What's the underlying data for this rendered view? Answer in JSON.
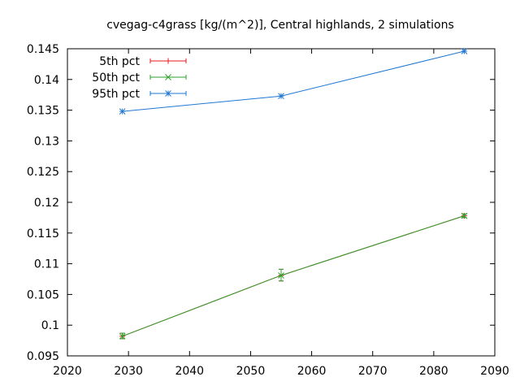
{
  "chart_data": {
    "type": "line",
    "title": "cvegag-c4grass [kg/(m^2)], Central highlands, 2 simulations",
    "xlabel": "",
    "ylabel": "",
    "xlim": [
      2020,
      2090
    ],
    "ylim": [
      0.095,
      0.145
    ],
    "x_ticks": [
      "2020",
      "2030",
      "2040",
      "2050",
      "2060",
      "2070",
      "2080",
      "2090"
    ],
    "y_ticks": [
      "0.145",
      "0.14",
      "0.135",
      "0.13",
      "0.125",
      "0.12",
      "0.115",
      "0.11",
      "0.105",
      "0.1",
      "0.095"
    ],
    "grid": false,
    "legend_position": "top-left",
    "x": [
      2029,
      2055,
      2085
    ],
    "series": [
      {
        "name": "5th pct",
        "color": "#e41a1c",
        "marker": "plus",
        "values": [
          0.0982,
          0.1081,
          0.1178
        ],
        "err_low": [
          0.0978,
          0.1072,
          0.1175
        ],
        "err_high": [
          0.0987,
          0.1091,
          0.1181
        ]
      },
      {
        "name": "50th pct",
        "color": "#2ca02c",
        "marker": "cross",
        "values": [
          0.0982,
          0.1081,
          0.1178
        ],
        "err_low": [
          0.0978,
          0.1072,
          0.1175
        ],
        "err_high": [
          0.0987,
          0.1091,
          0.1181
        ]
      },
      {
        "name": "95th pct",
        "color": "#1f77d4",
        "marker": "star",
        "values": [
          0.1348,
          0.1373,
          0.1446
        ],
        "err_low": [
          0.1348,
          0.1373,
          0.1446
        ],
        "err_high": [
          0.1348,
          0.1373,
          0.1446
        ]
      }
    ]
  }
}
